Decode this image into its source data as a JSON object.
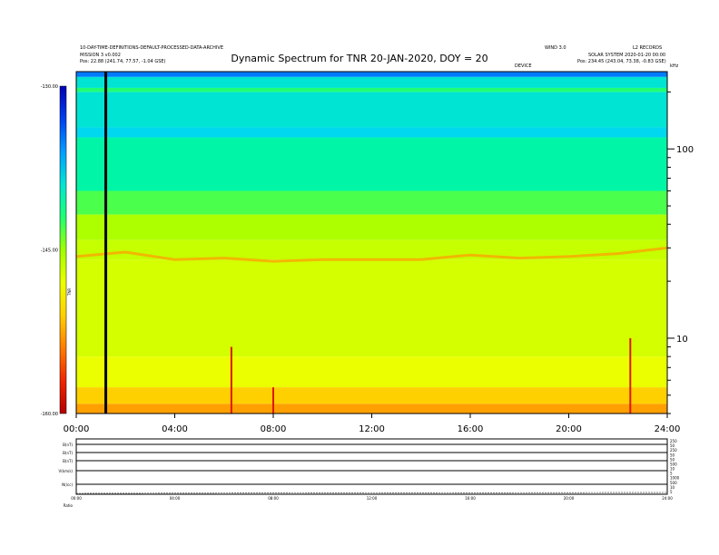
{
  "header": {
    "left_line1": "10-DAY-TIME-DEFINITIONS-DEFAULT-PROCESSED-DATA-ARCHIVE",
    "left_line2": "MISSION 3 v0.002",
    "left_line3": "Pos:    22.88 (241.74, 77.57, -1.04 GSE)",
    "right_line1a": "WIND 3.0",
    "right_line1b": "L2 RECORDS",
    "right_line2": "SOLAR SYSTEM 2020-01-20 00:00",
    "right_line3": "Pos:    234.45 (243.04, 73.38, -0.83 GSE)",
    "center_small": "DEVICE",
    "right_small": "kHz"
  },
  "chart_data": {
    "type": "heatmap",
    "title": "Dynamic Spectrum for TNR 20-JAN-2020, DOY = 20",
    "x_tick_labels": [
      "00:00",
      "04:00",
      "08:00",
      "12:00",
      "16:00",
      "20:00",
      "24:00"
    ],
    "x_range_hours": [
      0,
      24
    ],
    "y_right_tick_labels": [
      "100",
      "10"
    ],
    "y_right_ticks_khz": [
      100,
      10
    ],
    "y_range_khz": [
      4,
      256
    ],
    "colorbar_labels": [
      "-130.00",
      "-145.00",
      "-160.00"
    ],
    "colorbar_range": [
      -160,
      -130
    ],
    "colorbar_unit": "TNR",
    "colorscale": [
      "#0000b4",
      "#0050ff",
      "#00d2ff",
      "#00ff90",
      "#a0ff00",
      "#ffff00",
      "#ffb000",
      "#ff3000",
      "#b40000"
    ],
    "bands": [
      {
        "from_khz": 240,
        "to_khz": 256,
        "value": -135.0
      },
      {
        "from_khz": 210,
        "to_khz": 240,
        "value": -139.0
      },
      {
        "from_khz": 200,
        "to_khz": 210,
        "value": -142.0
      },
      {
        "from_khz": 130,
        "to_khz": 200,
        "value": -139.0
      },
      {
        "from_khz": 115,
        "to_khz": 130,
        "value": -138.0
      },
      {
        "from_khz": 60,
        "to_khz": 115,
        "value": -140.5
      },
      {
        "from_khz": 45,
        "to_khz": 60,
        "value": -143.0
      },
      {
        "from_khz": 33,
        "to_khz": 45,
        "value": -145.5
      },
      {
        "from_khz": 26,
        "to_khz": 33,
        "value": -146.5
      },
      {
        "from_khz": 8,
        "to_khz": 26,
        "value": -147.0
      },
      {
        "from_khz": 5.5,
        "to_khz": 8,
        "value": -148.0
      },
      {
        "from_khz": 4.5,
        "to_khz": 5.5,
        "value": -151.0
      },
      {
        "from_khz": 4,
        "to_khz": 4.5,
        "value": -153.0
      }
    ],
    "plasma_line_khz": [
      [
        0,
        27
      ],
      [
        2,
        28.5
      ],
      [
        4,
        26
      ],
      [
        6,
        26.5
      ],
      [
        8,
        25.5
      ],
      [
        10,
        26
      ],
      [
        12,
        26
      ],
      [
        14,
        26
      ],
      [
        16,
        27.5
      ],
      [
        18,
        26.5
      ],
      [
        20,
        27
      ],
      [
        22,
        28
      ],
      [
        24,
        30
      ]
    ],
    "plasma_line_value": -153.0,
    "bursts": [
      {
        "hour": 6.3,
        "to_khz": 9
      },
      {
        "hour": 22.5,
        "to_khz": 10
      },
      {
        "hour": 8.0,
        "to_khz": 5.5
      },
      {
        "hour": 1.2,
        "to_khz": 5.2
      }
    ],
    "data_gap_hour": 1.2
  },
  "bottom_panel": {
    "row_labels": [
      "B(nT)",
      "B(nT)",
      "B(nT)",
      "V(km/s)",
      "N(/cc)",
      "",
      "Ratio"
    ],
    "right_scale": [
      "250",
      "50",
      "250",
      "50",
      "50",
      "500",
      "10",
      "5",
      "1000",
      "500",
      "10",
      "5"
    ],
    "x_tick_labels": [
      "00:00",
      "04:00",
      "08:00",
      "12:00",
      "16:00",
      "20:00",
      "24:00"
    ]
  }
}
